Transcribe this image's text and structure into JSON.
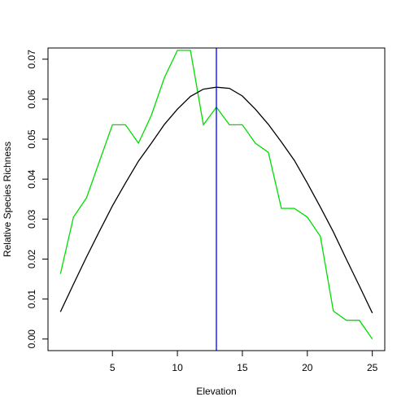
{
  "chart_data": {
    "type": "line",
    "title": "",
    "xlabel": "Elevation",
    "ylabel": "Relative Species Richness",
    "xlim": [
      0.04,
      25.96
    ],
    "ylim": [
      -0.0029,
      0.0728
    ],
    "x_ticks": [
      5,
      10,
      15,
      20,
      25
    ],
    "y_ticks": [
      0.0,
      0.01,
      0.02,
      0.03,
      0.04,
      0.05,
      0.06,
      0.07
    ],
    "y_tick_labels": [
      "0.00",
      "0.01",
      "0.02",
      "0.03",
      "0.04",
      "0.05",
      "0.06",
      "0.07"
    ],
    "grid": false,
    "legend": "none",
    "x": [
      1,
      2,
      3,
      4,
      5,
      6,
      7,
      8,
      9,
      10,
      11,
      12,
      13,
      14,
      15,
      16,
      17,
      18,
      19,
      20,
      21,
      22,
      23,
      24,
      25
    ],
    "series": [
      {
        "color": "#00dd00",
        "values": [
          0.0163,
          0.0305,
          0.0353,
          0.0445,
          0.0536,
          0.0536,
          0.049,
          0.056,
          0.0654,
          0.0722,
          0.0722,
          0.0536,
          0.058,
          0.0536,
          0.0536,
          0.049,
          0.0467,
          0.0327,
          0.0327,
          0.0305,
          0.0257,
          0.007,
          0.0047,
          0.0047,
          0.0
        ]
      },
      {
        "color": "#000000",
        "values": [
          0.0068,
          0.0137,
          0.0205,
          0.027,
          0.0333,
          0.039,
          0.0445,
          0.049,
          0.0537,
          0.0575,
          0.0607,
          0.0625,
          0.063,
          0.0627,
          0.0608,
          0.0575,
          0.0537,
          0.0493,
          0.0447,
          0.039,
          0.033,
          0.0268,
          0.02,
          0.0133,
          0.0065
        ]
      }
    ],
    "vline": {
      "x": 13,
      "color": "#0000ff"
    }
  }
}
